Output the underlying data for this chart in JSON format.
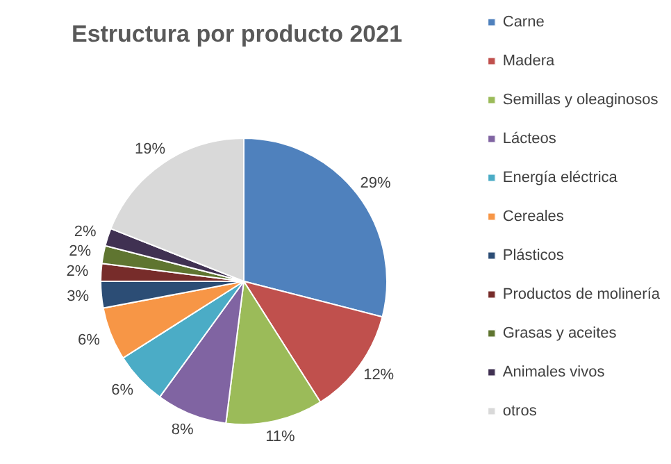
{
  "chart_data": {
    "type": "pie",
    "title": "Estructura por producto 2021",
    "categories": [
      "Carne",
      "Madera",
      "Semillas y oleaginosos",
      "Lácteos",
      "Energía eléctrica",
      "Cereales",
      "Plásticos",
      "Productos de molinería",
      "Grasas y aceites",
      "Animales vivos",
      "otros"
    ],
    "values": [
      29,
      12,
      11,
      8,
      6,
      6,
      3,
      2,
      2,
      2,
      19
    ],
    "colors": [
      "#4f81bd",
      "#c0504d",
      "#9bbb59",
      "#8064a2",
      "#4bacc6",
      "#f79646",
      "#2c4d75",
      "#772c2a",
      "#5f7530",
      "#403152",
      "#d9d9d9"
    ],
    "value_labels": [
      "29%",
      "12%",
      "11%",
      "8%",
      "6%",
      "6%",
      "3%",
      "2%",
      "2%",
      "2%",
      "19%"
    ],
    "legend": "right"
  }
}
